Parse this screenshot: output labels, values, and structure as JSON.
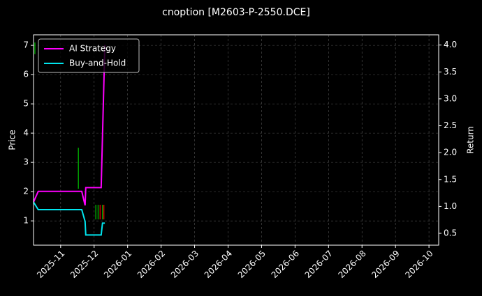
{
  "chart_data": {
    "type": "line",
    "title": "cnoption [M2603-P-2550.DCE]",
    "ylabel": "Price",
    "y2label": "Return",
    "xlim": [
      10.19,
      22.29
    ],
    "xticks": [
      {
        "value": 11,
        "label": "2025-11"
      },
      {
        "value": 12,
        "label": "2025-12"
      },
      {
        "value": 13,
        "label": "2026-01"
      },
      {
        "value": 14,
        "label": "2026-02"
      },
      {
        "value": 15,
        "label": "2026-03"
      },
      {
        "value": 16,
        "label": "2026-04"
      },
      {
        "value": 17,
        "label": "2026-05"
      },
      {
        "value": 18,
        "label": "2026-06"
      },
      {
        "value": 19,
        "label": "2026-07"
      },
      {
        "value": 20,
        "label": "2026-08"
      },
      {
        "value": 21,
        "label": "2026-09"
      },
      {
        "value": 22,
        "label": "2026-10"
      }
    ],
    "ylim": [
      0.17,
      7.36
    ],
    "yticks": [
      1,
      2,
      3,
      4,
      5,
      6,
      7
    ],
    "y2lim": [
      0.28,
      4.19
    ],
    "y2ticks": [
      0.5,
      {
        "value": 1,
        "label": "1.0"
      },
      1.5,
      {
        "value": 2,
        "label": "2.0"
      },
      2.5,
      {
        "value": 3,
        "label": "3.0"
      },
      3.5,
      {
        "value": 4,
        "label": "4.0"
      }
    ],
    "grid": true,
    "legend": "upper-left",
    "series": [
      {
        "name": "AI Strategy",
        "color": "#ff00ff",
        "axis": "y2",
        "x": [
          10.19,
          10.33,
          11.63,
          11.73,
          11.75,
          12.21,
          12.32
        ],
        "values": [
          1.08,
          1.28,
          1.28,
          1.02,
          1.35,
          1.35,
          4.0
        ]
      },
      {
        "name": "Buy-and-Hold",
        "color": "#00e5ee",
        "axis": "y2",
        "x": [
          10.19,
          10.33,
          11.63,
          11.73,
          11.75,
          12.21,
          12.25,
          12.32
        ],
        "values": [
          1.08,
          0.94,
          0.94,
          0.72,
          0.47,
          0.47,
          0.69,
          0.69
        ]
      }
    ],
    "price_bars": {
      "up_color": "#00a000",
      "down_color": "#d00000",
      "x": [
        10.23,
        11.53,
        12.05,
        12.12,
        12.18,
        12.25,
        12.29
      ],
      "low": [
        6.7,
        2.1,
        1.05,
        1.05,
        1.05,
        1.05,
        1.05
      ],
      "high": [
        7.1,
        3.5,
        1.55,
        1.55,
        1.55,
        1.55,
        1.55
      ],
      "up": [
        true,
        true,
        true,
        true,
        false,
        true,
        false
      ]
    }
  }
}
